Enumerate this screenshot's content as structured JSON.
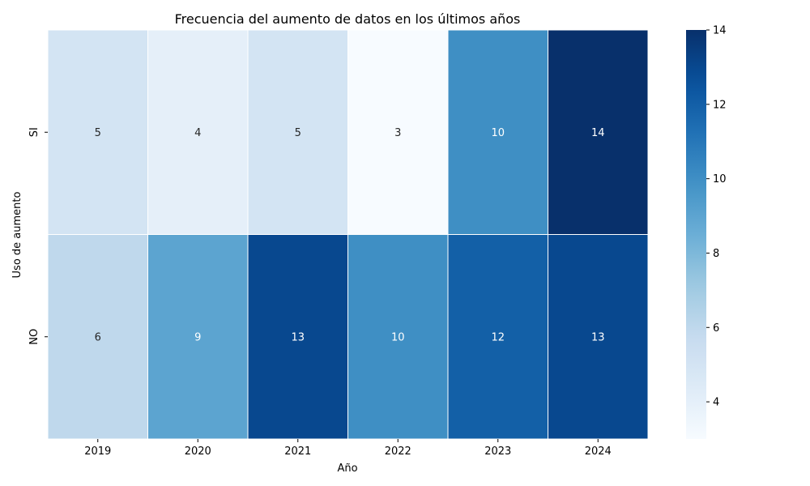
{
  "chart_data": {
    "type": "heatmap",
    "title": "Frecuencia del aumento de datos en los últimos años",
    "xlabel": "Año",
    "ylabel": "Uso de aumento",
    "x": [
      "2019",
      "2020",
      "2021",
      "2022",
      "2023",
      "2024"
    ],
    "y": [
      "SI",
      "NO"
    ],
    "values": [
      [
        5,
        4,
        5,
        3,
        10,
        14
      ],
      [
        6,
        9,
        13,
        10,
        12,
        13
      ]
    ],
    "colorbar": {
      "range": [
        3,
        14
      ],
      "ticks": [
        4,
        6,
        8,
        10,
        12,
        14
      ],
      "colormap": "Blues"
    },
    "annotate_cells": true,
    "grid": false
  }
}
